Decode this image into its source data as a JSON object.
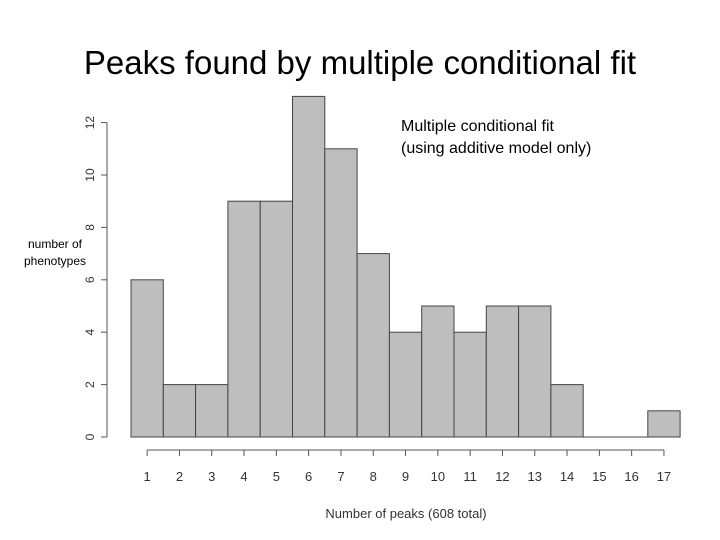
{
  "slide": {
    "title": "Peaks found by multiple conditional fit",
    "annotation_line1": "Multiple conditional fit",
    "annotation_line2": "(using additive model only)",
    "ylabel_line1": "number of",
    "ylabel_line2": "phenotypes"
  },
  "chart_data": {
    "type": "bar",
    "title": "Peaks found by multiple conditional fit",
    "xlabel": "Number of peaks (608 total)",
    "ylabel": "number of phenotypes",
    "categories": [
      "1",
      "2",
      "3",
      "4",
      "5",
      "6",
      "7",
      "8",
      "9",
      "10",
      "11",
      "12",
      "13",
      "14",
      "15",
      "16",
      "17"
    ],
    "values": [
      6,
      2,
      2,
      9,
      9,
      13,
      11,
      7,
      4,
      5,
      4,
      5,
      5,
      2,
      0,
      0,
      1
    ],
    "yticks": [
      0,
      2,
      4,
      6,
      8,
      10,
      12
    ],
    "ylim": [
      0,
      13
    ],
    "grid": false,
    "bar_color": "#bebebe",
    "bar_edge_color": "#444444"
  }
}
